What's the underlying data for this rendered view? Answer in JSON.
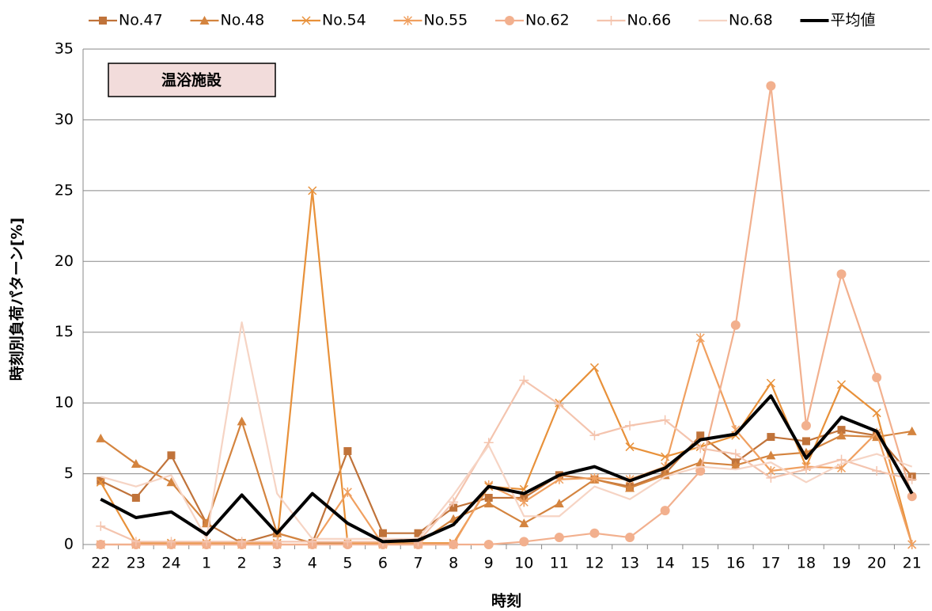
{
  "chart_data": {
    "type": "line",
    "annotation": "温浴施設",
    "xlabel": "時刻",
    "ylabel": "時刻別負荷パターン[%]",
    "categories": [
      "22",
      "23",
      "24",
      "1",
      "2",
      "3",
      "4",
      "5",
      "6",
      "7",
      "8",
      "9",
      "10",
      "11",
      "12",
      "13",
      "14",
      "15",
      "16",
      "17",
      "18",
      "19",
      "20",
      "21"
    ],
    "ylim": [
      0,
      35
    ],
    "yticks": [
      0,
      5,
      10,
      15,
      20,
      25,
      30,
      35
    ],
    "grid": true,
    "legend": "top",
    "series": [
      {
        "name": "No.47",
        "color": "#c0733a",
        "marker": "square",
        "values": [
          4.5,
          3.3,
          6.3,
          1.5,
          0.1,
          0.8,
          0.1,
          6.6,
          0.8,
          0.8,
          2.6,
          3.3,
          3.3,
          4.9,
          4.6,
          4.1,
          5.0,
          7.7,
          5.8,
          7.6,
          7.3,
          8.1,
          7.7,
          4.8
        ]
      },
      {
        "name": "No.48",
        "color": "#d4843f",
        "marker": "triangle",
        "values": [
          7.5,
          5.7,
          4.4,
          1.5,
          8.7,
          0.8,
          0.1,
          0.1,
          0.1,
          0.1,
          1.8,
          2.9,
          1.5,
          2.9,
          4.6,
          4.0,
          4.9,
          5.8,
          5.6,
          6.3,
          6.5,
          7.7,
          7.6,
          8.0
        ]
      },
      {
        "name": "No.54",
        "color": "#e8913a",
        "marker": "x",
        "values": [
          4.4,
          0.1,
          0.1,
          0.1,
          0.1,
          0.1,
          25.0,
          0.1,
          0.1,
          0.1,
          0.1,
          4.1,
          3.9,
          10.0,
          12.5,
          6.9,
          6.2,
          6.9,
          7.7,
          11.4,
          5.5,
          11.3,
          9.3,
          0.0
        ]
      },
      {
        "name": "No.55",
        "color": "#f0a060",
        "marker": "asterisk",
        "values": [
          0.0,
          0.0,
          0.0,
          0.0,
          0.0,
          0.0,
          0.0,
          3.7,
          0.0,
          0.0,
          0.0,
          4.2,
          3.0,
          4.6,
          4.7,
          4.6,
          5.5,
          14.6,
          8.1,
          5.2,
          5.5,
          5.4,
          7.9,
          0.0
        ]
      },
      {
        "name": "No.62",
        "color": "#f2b08e",
        "marker": "circle",
        "values": [
          0.0,
          0.0,
          0.0,
          0.0,
          0.0,
          0.0,
          0.0,
          0.0,
          0.0,
          0.0,
          0.0,
          0.0,
          0.2,
          0.5,
          0.8,
          0.5,
          2.4,
          5.2,
          15.5,
          32.4,
          8.4,
          19.1,
          11.8,
          3.4
        ]
      },
      {
        "name": "No.66",
        "color": "#f4c4ae",
        "marker": "plus",
        "values": [
          1.3,
          0.2,
          0.2,
          0.2,
          0.2,
          0.2,
          0.2,
          0.2,
          0.2,
          0.2,
          3.0,
          7.2,
          11.6,
          9.9,
          7.7,
          8.4,
          8.8,
          6.8,
          6.4,
          4.7,
          5.3,
          6.0,
          5.2,
          4.6
        ]
      },
      {
        "name": "No.68",
        "color": "#f6d4c4",
        "marker": "none",
        "values": [
          4.8,
          4.1,
          4.9,
          0.4,
          15.7,
          3.6,
          0.4,
          0.4,
          0.4,
          0.4,
          3.5,
          7.0,
          2.0,
          2.0,
          4.1,
          3.2,
          4.8,
          5.5,
          5.3,
          5.8,
          4.4,
          5.7,
          6.4,
          5.5
        ]
      },
      {
        "name": "平均値",
        "color": "#000000",
        "marker": "none",
        "width": 4,
        "values": [
          3.2,
          1.9,
          2.3,
          0.7,
          3.5,
          0.8,
          3.6,
          1.5,
          0.2,
          0.3,
          1.4,
          4.1,
          3.6,
          4.9,
          5.5,
          4.5,
          5.4,
          7.4,
          7.8,
          10.5,
          6.1,
          9.0,
          8.0,
          3.6
        ]
      }
    ]
  }
}
